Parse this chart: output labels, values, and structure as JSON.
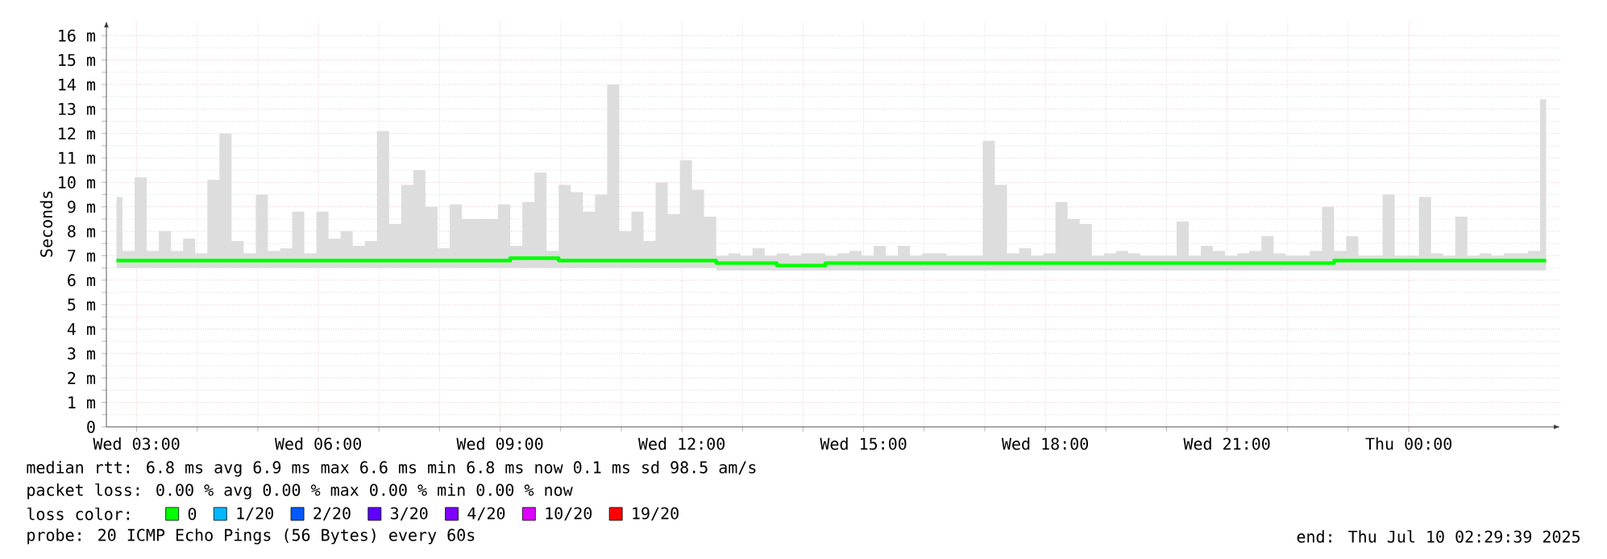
{
  "chart_data": {
    "type": "line",
    "ylabel": "Seconds",
    "xlim": [
      "2025-07-09T02:30",
      "2025-07-10T02:30"
    ],
    "ylim": [
      0,
      16.6
    ],
    "xticks": [
      {
        "value": "2025-07-09T03:00",
        "label": "Wed 03:00"
      },
      {
        "value": "2025-07-09T06:00",
        "label": "Wed 06:00"
      },
      {
        "value": "2025-07-09T09:00",
        "label": "Wed 09:00"
      },
      {
        "value": "2025-07-09T12:00",
        "label": "Wed 12:00"
      },
      {
        "value": "2025-07-09T15:00",
        "label": "Wed 15:00"
      },
      {
        "value": "2025-07-09T18:00",
        "label": "Wed 18:00"
      },
      {
        "value": "2025-07-09T21:00",
        "label": "Wed 21:00"
      },
      {
        "value": "2025-07-10T00:00",
        "label": "Thu 00:00"
      }
    ],
    "yticks": [
      0,
      {
        "value": 1,
        "label": "1 m"
      },
      {
        "value": 2,
        "label": "2 m"
      },
      {
        "value": 3,
        "label": "3 m"
      },
      {
        "value": 4,
        "label": "4 m"
      },
      {
        "value": 5,
        "label": "5 m"
      },
      {
        "value": 6,
        "label": "6 m"
      },
      {
        "value": 7,
        "label": "7 m"
      },
      {
        "value": 8,
        "label": "8 m"
      },
      {
        "value": 9,
        "label": "9 m"
      },
      {
        "value": 10,
        "label": "10 m"
      },
      {
        "value": 11,
        "label": "11 m"
      },
      {
        "value": 12,
        "label": "12 m"
      },
      {
        "value": 13,
        "label": "13 m"
      },
      {
        "value": 14,
        "label": "14 m"
      },
      {
        "value": 15,
        "label": "15 m"
      },
      {
        "value": 16,
        "label": "16 m"
      }
    ],
    "grid": true,
    "legend": "bottom",
    "legend_title": "loss color:",
    "series": [
      {
        "name": "0",
        "color": "#00ff00",
        "x": [
          "2025-07-09T02:40",
          "2025-07-09T02:52",
          "2025-07-09T03:04",
          "2025-07-09T03:16",
          "2025-07-09T03:28",
          "2025-07-09T03:40",
          "2025-07-09T03:52",
          "2025-07-09T04:04",
          "2025-07-09T04:16",
          "2025-07-09T04:28",
          "2025-07-09T04:40",
          "2025-07-09T04:52",
          "2025-07-09T05:04",
          "2025-07-09T05:16",
          "2025-07-09T05:28",
          "2025-07-09T05:40",
          "2025-07-09T05:52",
          "2025-07-09T06:04",
          "2025-07-09T06:16",
          "2025-07-09T06:28",
          "2025-07-09T06:40",
          "2025-07-09T06:52",
          "2025-07-09T07:04",
          "2025-07-09T07:16",
          "2025-07-09T07:28",
          "2025-07-09T07:40",
          "2025-07-09T07:52",
          "2025-07-09T08:04",
          "2025-07-09T08:16",
          "2025-07-09T08:28",
          "2025-07-09T08:40",
          "2025-07-09T08:52",
          "2025-07-09T09:04",
          "2025-07-09T09:16",
          "2025-07-09T09:28",
          "2025-07-09T09:40",
          "2025-07-09T09:52",
          "2025-07-09T10:04",
          "2025-07-09T10:16",
          "2025-07-09T10:28",
          "2025-07-09T10:40",
          "2025-07-09T10:52",
          "2025-07-09T11:04",
          "2025-07-09T11:16",
          "2025-07-09T11:28",
          "2025-07-09T11:40",
          "2025-07-09T11:52",
          "2025-07-09T12:04",
          "2025-07-09T12:16",
          "2025-07-09T12:28",
          "2025-07-09T12:40",
          "2025-07-09T12:52",
          "2025-07-09T13:04",
          "2025-07-09T13:16",
          "2025-07-09T13:28",
          "2025-07-09T13:40",
          "2025-07-09T13:52",
          "2025-07-09T14:04",
          "2025-07-09T14:16",
          "2025-07-09T14:28",
          "2025-07-09T14:40",
          "2025-07-09T14:52",
          "2025-07-09T15:04",
          "2025-07-09T15:16",
          "2025-07-09T15:28",
          "2025-07-09T15:40",
          "2025-07-09T15:52",
          "2025-07-09T16:04",
          "2025-07-09T16:16",
          "2025-07-09T16:28",
          "2025-07-09T16:40",
          "2025-07-09T16:52",
          "2025-07-09T17:04",
          "2025-07-09T17:16",
          "2025-07-09T17:28",
          "2025-07-09T17:40",
          "2025-07-09T17:52",
          "2025-07-09T18:04",
          "2025-07-09T18:16",
          "2025-07-09T18:28",
          "2025-07-09T18:40",
          "2025-07-09T18:52",
          "2025-07-09T19:04",
          "2025-07-09T19:16",
          "2025-07-09T19:28",
          "2025-07-09T19:40",
          "2025-07-09T19:52",
          "2025-07-09T20:04",
          "2025-07-09T20:16",
          "2025-07-09T20:28",
          "2025-07-09T20:40",
          "2025-07-09T20:52",
          "2025-07-09T21:04",
          "2025-07-09T21:16",
          "2025-07-09T21:28",
          "2025-07-09T21:40",
          "2025-07-09T21:52",
          "2025-07-09T22:04",
          "2025-07-09T22:16",
          "2025-07-09T22:28",
          "2025-07-09T22:40",
          "2025-07-09T22:52",
          "2025-07-09T23:04",
          "2025-07-09T23:16",
          "2025-07-09T23:28",
          "2025-07-09T23:40",
          "2025-07-09T23:52",
          "2025-07-10T00:04",
          "2025-07-10T00:16",
          "2025-07-10T00:28",
          "2025-07-10T00:40",
          "2025-07-10T00:52",
          "2025-07-10T01:04",
          "2025-07-10T01:16",
          "2025-07-10T01:28",
          "2025-07-10T01:40",
          "2025-07-10T01:52",
          "2025-07-10T02:04",
          "2025-07-10T02:16"
        ],
        "values": [
          6.8,
          6.8,
          6.8,
          6.8,
          6.8,
          6.8,
          6.8,
          6.8,
          6.8,
          6.8,
          6.8,
          6.8,
          6.8,
          6.8,
          6.8,
          6.8,
          6.8,
          6.8,
          6.8,
          6.8,
          6.8,
          6.8,
          6.8,
          6.8,
          6.8,
          6.8,
          6.8,
          6.8,
          6.8,
          6.8,
          6.8,
          6.8,
          6.8,
          6.9,
          6.9,
          6.9,
          6.9,
          6.8,
          6.8,
          6.8,
          6.8,
          6.8,
          6.8,
          6.8,
          6.8,
          6.8,
          6.8,
          6.8,
          6.8,
          6.8,
          6.7,
          6.7,
          6.7,
          6.7,
          6.7,
          6.6,
          6.6,
          6.6,
          6.6,
          6.7,
          6.7,
          6.7,
          6.7,
          6.7,
          6.7,
          6.7,
          6.7,
          6.7,
          6.7,
          6.7,
          6.7,
          6.7,
          6.7,
          6.7,
          6.7,
          6.7,
          6.7,
          6.7,
          6.7,
          6.7,
          6.7,
          6.7,
          6.7,
          6.7,
          6.7,
          6.7,
          6.7,
          6.7,
          6.7,
          6.7,
          6.7,
          6.7,
          6.7,
          6.7,
          6.7,
          6.7,
          6.7,
          6.7,
          6.7,
          6.7,
          6.7,
          6.8,
          6.8,
          6.8,
          6.8,
          6.8,
          6.8,
          6.8,
          6.8,
          6.8,
          6.8,
          6.8,
          6.8,
          6.8,
          6.8,
          6.8,
          6.8,
          6.8,
          6.8
        ],
        "lower": [
          6.5,
          6.5,
          6.5,
          6.5,
          6.5,
          6.5,
          6.5,
          6.5,
          6.5,
          6.5,
          6.5,
          6.5,
          6.5,
          6.5,
          6.5,
          6.5,
          6.5,
          6.5,
          6.5,
          6.5,
          6.5,
          6.5,
          6.5,
          6.5,
          6.5,
          6.5,
          6.5,
          6.5,
          6.5,
          6.5,
          6.5,
          6.5,
          6.5,
          6.5,
          6.5,
          6.5,
          6.5,
          6.5,
          6.5,
          6.5,
          6.5,
          6.5,
          6.5,
          6.5,
          6.5,
          6.5,
          6.5,
          6.5,
          6.5,
          6.5,
          6.4,
          6.4,
          6.4,
          6.4,
          6.4,
          6.4,
          6.4,
          6.4,
          6.4,
          6.4,
          6.4,
          6.4,
          6.4,
          6.4,
          6.4,
          6.4,
          6.4,
          6.4,
          6.4,
          6.4,
          6.4,
          6.4,
          6.4,
          6.4,
          6.4,
          6.4,
          6.4,
          6.4,
          6.4,
          6.4,
          6.4,
          6.4,
          6.4,
          6.4,
          6.4,
          6.4,
          6.4,
          6.4,
          6.4,
          6.4,
          6.4,
          6.4,
          6.4,
          6.4,
          6.4,
          6.4,
          6.4,
          6.4,
          6.4,
          6.4,
          6.4,
          6.4,
          6.4,
          6.4,
          6.4,
          6.4,
          6.4,
          6.4,
          6.4,
          6.4,
          6.4,
          6.4,
          6.4,
          6.4,
          6.4,
          6.4,
          6.4,
          6.4,
          6.4
        ],
        "upper": [
          9.4,
          7.2,
          10.2,
          7.2,
          8.0,
          7.2,
          7.7,
          7.1,
          10.1,
          12.0,
          7.6,
          7.1,
          9.5,
          7.2,
          7.3,
          8.8,
          7.1,
          8.8,
          7.7,
          8.0,
          7.4,
          7.6,
          12.1,
          8.3,
          9.9,
          10.5,
          9.0,
          7.3,
          9.1,
          8.5,
          8.5,
          8.5,
          9.1,
          7.4,
          9.2,
          10.4,
          7.2,
          9.9,
          9.6,
          8.8,
          9.5,
          14.0,
          8.0,
          8.8,
          7.6,
          10.0,
          8.7,
          10.9,
          9.7,
          8.6,
          7.0,
          7.1,
          7.0,
          7.3,
          7.0,
          7.1,
          7.0,
          7.1,
          7.1,
          7.0,
          7.1,
          7.2,
          7.0,
          7.4,
          7.0,
          7.4,
          7.0,
          7.1,
          7.1,
          7.0,
          7.0,
          7.0,
          11.7,
          9.9,
          7.1,
          7.3,
          7.0,
          7.1,
          9.2,
          8.5,
          8.3,
          7.0,
          7.1,
          7.2,
          7.1,
          7.0,
          7.0,
          7.0,
          8.4,
          7.0,
          7.4,
          7.2,
          7.0,
          7.1,
          7.2,
          7.8,
          7.1,
          7.0,
          7.0,
          7.2,
          9.0,
          7.2,
          7.8,
          7.0,
          7.0,
          9.5,
          7.0,
          7.0,
          9.4,
          7.1,
          7.0,
          8.6,
          7.0,
          7.1,
          7.0,
          7.1,
          7.1,
          7.2,
          13.4
        ]
      },
      {
        "name": "1/20",
        "color": "#00b8ff",
        "values": [
          null
        ]
      },
      {
        "name": "2/20",
        "color": "#0059ff",
        "values": [
          null
        ]
      },
      {
        "name": "3/20",
        "color": "#5e00ff",
        "values": [
          null
        ]
      },
      {
        "name": "4/20",
        "color": "#7e00ff",
        "values": [
          null
        ]
      },
      {
        "name": "10/20",
        "color": "#dd00ff",
        "values": [
          null
        ]
      },
      {
        "name": "19/20",
        "color": "#ff0000",
        "values": [
          null
        ]
      }
    ],
    "annotations": [
      "median rtt:  6.8 ms avg  6.9 ms max  6.6 ms min  6.8 ms now  0.1 ms sd  98.5   am/s",
      "packet loss: 0.00 % avg  0.00 % max  0.00 % min  0.00 % now",
      "probe:       20 ICMP Echo Pings (56 Bytes) every 60s",
      "end: Thu Jul 10 02:29:39 2025"
    ]
  }
}
